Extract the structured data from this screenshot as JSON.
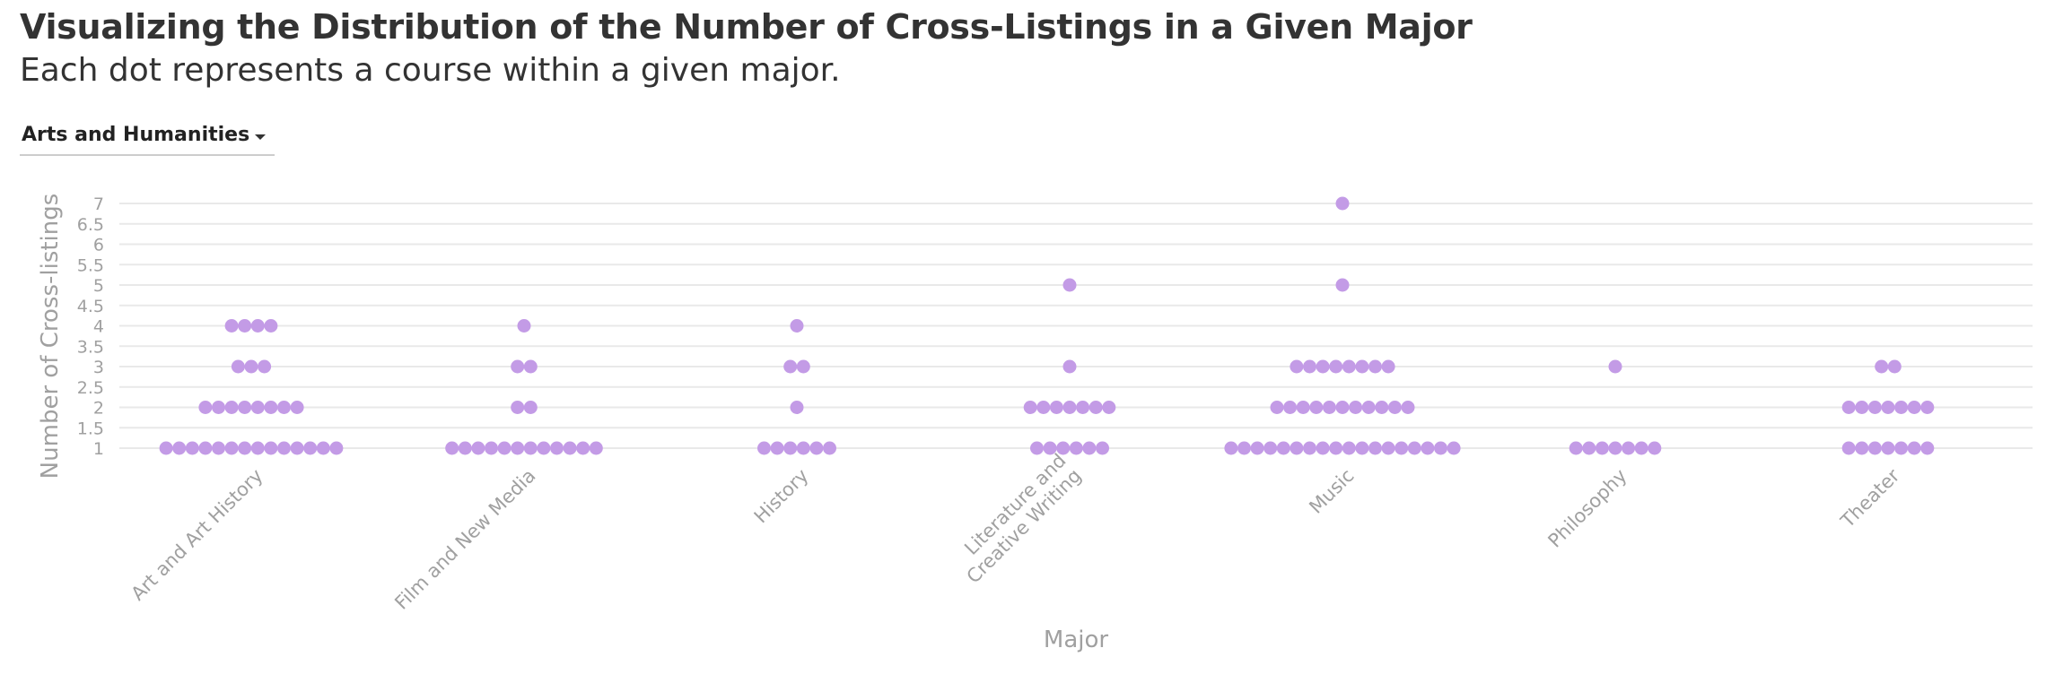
{
  "title": "Visualizing the Distribution of the Number of Cross-Listings in a Given Major",
  "subtitle": "Each dot represents a course within a given major.",
  "filter": {
    "selected": "Arts and Humanities",
    "caret_icon": "caret-down-icon"
  },
  "colors": {
    "dot": "#c39be6",
    "grid": "#e9e9e9",
    "axis_text": "#a0a0a0",
    "title": "#333333"
  },
  "chart_data": {
    "type": "scatter",
    "xlabel": "Major",
    "ylabel": "Number of Cross-listings",
    "ylim": [
      1,
      7
    ],
    "yticks": [
      "1",
      "1.5",
      "2",
      "2.5",
      "3",
      "3.5",
      "4",
      "4.5",
      "5",
      "5.5",
      "6",
      "6.5",
      "7"
    ],
    "grid": true,
    "categories": [
      {
        "label": [
          "Art and Art History"
        ],
        "counts": {
          "1": 14,
          "2": 8,
          "3": 3,
          "4": 4
        }
      },
      {
        "label": [
          "Film and New Media"
        ],
        "counts": {
          "1": 12,
          "2": 2,
          "3": 2,
          "4": 1
        }
      },
      {
        "label": [
          "History"
        ],
        "counts": {
          "1": 6,
          "2": 1,
          "3": 2,
          "4": 1
        }
      },
      {
        "label": [
          "Literature and",
          "Creative Writing"
        ],
        "counts": {
          "1": 6,
          "2": 7,
          "3": 1,
          "5": 1
        }
      },
      {
        "label": [
          "Music"
        ],
        "counts": {
          "1": 18,
          "2": 11,
          "3": 8,
          "5": 1,
          "7": 1
        }
      },
      {
        "label": [
          "Philosophy"
        ],
        "counts": {
          "1": 7,
          "3": 1
        }
      },
      {
        "label": [
          "Theater"
        ],
        "counts": {
          "1": 7,
          "2": 7,
          "3": 2
        }
      }
    ]
  }
}
